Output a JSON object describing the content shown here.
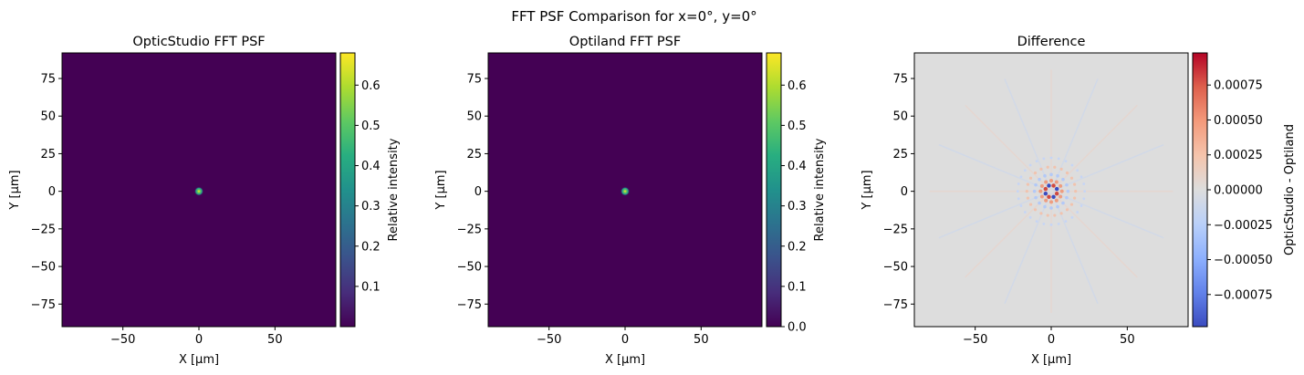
{
  "figure": {
    "suptitle": "FFT PSF Comparison for x=0°, y=0°"
  },
  "chart_data": [
    {
      "type": "heatmap",
      "title": "OpticStudio FFT PSF",
      "xlabel": "X [µm]",
      "ylabel": "Y [µm]",
      "xlim": [
        -90,
        90
      ],
      "ylim": [
        -90,
        92
      ],
      "xticks": [
        -50,
        0,
        50
      ],
      "yticks": [
        -75,
        -50,
        -25,
        0,
        25,
        50,
        75
      ],
      "colormap": "viridis",
      "peak": {
        "x": 0,
        "y": 0,
        "value": 0.67
      },
      "colorbar": {
        "label": "Relative intensity",
        "range": [
          0.0,
          0.68
        ],
        "ticks": [
          0.1,
          0.2,
          0.3,
          0.4,
          0.5,
          0.6
        ],
        "tick_labels": [
          "0.1",
          "0.2",
          "0.3",
          "0.4",
          "0.5",
          "0.6"
        ]
      }
    },
    {
      "type": "heatmap",
      "title": "Optiland FFT PSF",
      "xlabel": "X [µm]",
      "ylabel": "Y [µm]",
      "xlim": [
        -90,
        90
      ],
      "ylim": [
        -90,
        92
      ],
      "xticks": [
        -50,
        0,
        50
      ],
      "yticks": [
        -75,
        -50,
        -25,
        0,
        25,
        50,
        75
      ],
      "colormap": "viridis",
      "peak": {
        "x": 0,
        "y": 0,
        "value": 0.67
      },
      "colorbar": {
        "label": "Relative intensity",
        "range": [
          0.0,
          0.68
        ],
        "ticks": [
          0.0,
          0.1,
          0.2,
          0.3,
          0.4,
          0.5,
          0.6
        ],
        "tick_labels": [
          "0.0",
          "0.1",
          "0.2",
          "0.3",
          "0.4",
          "0.5",
          "0.6"
        ]
      }
    },
    {
      "type": "heatmap",
      "title": "Difference",
      "xlabel": "X [µm]",
      "ylabel": "Y [µm]",
      "xlim": [
        -90,
        90
      ],
      "ylim": [
        -90,
        92
      ],
      "xticks": [
        -50,
        0,
        50
      ],
      "yticks": [
        -75,
        -50,
        -25,
        0,
        25,
        50,
        75
      ],
      "colormap": "coolwarm",
      "center": {
        "x": 0,
        "y": 0
      },
      "colorbar": {
        "label": "OpticStudio - Optiland",
        "range": [
          -0.00098,
          0.00098
        ],
        "ticks": [
          -0.00075,
          -0.0005,
          -0.00025,
          0.0,
          0.00025,
          0.0005,
          0.00075
        ],
        "tick_labels": [
          "−0.00075",
          "−0.00050",
          "−0.00025",
          "0.00000",
          "0.00025",
          "0.00050",
          "0.00075"
        ]
      }
    }
  ]
}
